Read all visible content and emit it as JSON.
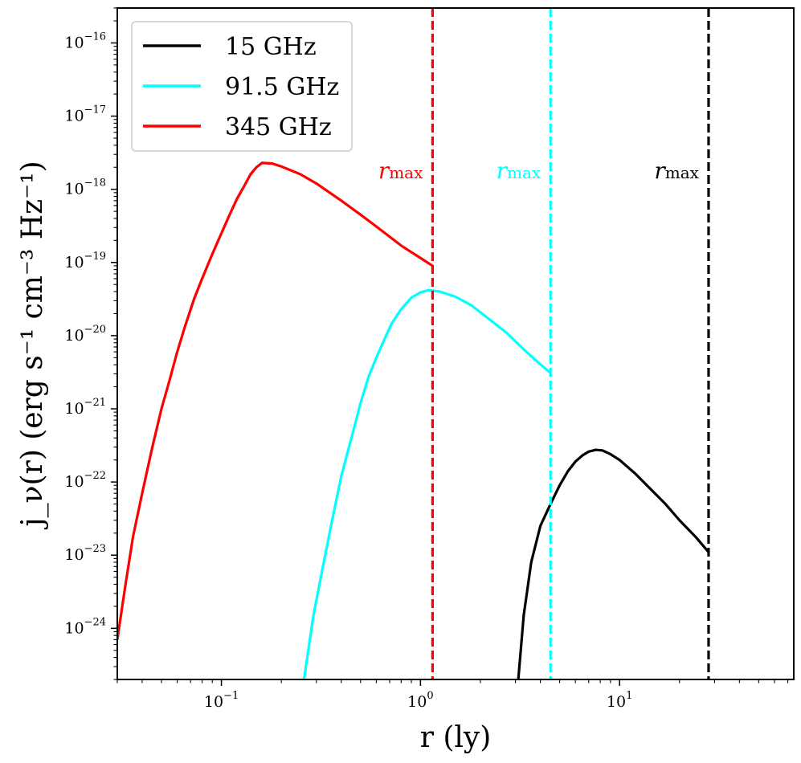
{
  "chart_data": {
    "type": "line",
    "title": "",
    "xlabel": "r (ly)",
    "ylabel": "j_ν(r) (erg s⁻¹ cm⁻³ Hz⁻¹)",
    "xscale": "log",
    "yscale": "log",
    "xlim": [
      0.03,
      75
    ],
    "ylim": [
      2e-25,
      3e-16
    ],
    "x_ticks": [
      {
        "base": "10",
        "exp": "−1",
        "value": 0.1
      },
      {
        "base": "10",
        "exp": "0",
        "value": 1
      },
      {
        "base": "10",
        "exp": "1",
        "value": 10
      }
    ],
    "y_ticks": [
      {
        "base": "10",
        "exp": "−24",
        "value": 1e-24
      },
      {
        "base": "10",
        "exp": "−23",
        "value": 1e-23
      },
      {
        "base": "10",
        "exp": "−22",
        "value": 1e-22
      },
      {
        "base": "10",
        "exp": "−21",
        "value": 1e-21
      },
      {
        "base": "10",
        "exp": "−20",
        "value": 1e-20
      },
      {
        "base": "10",
        "exp": "−19",
        "value": 1e-19
      },
      {
        "base": "10",
        "exp": "−18",
        "value": 1e-18
      },
      {
        "base": "10",
        "exp": "−17",
        "value": 1e-17
      },
      {
        "base": "10",
        "exp": "−16",
        "value": 1e-16
      }
    ],
    "legend_position": "top-left",
    "series": [
      {
        "name": "15 GHz",
        "color": "#000000",
        "rmax": 28,
        "points": [
          [
            3.1,
            2e-25
          ],
          [
            3.3,
            1.5e-24
          ],
          [
            3.6,
            8e-24
          ],
          [
            4.0,
            2.5e-23
          ],
          [
            4.5,
            5e-23
          ],
          [
            5.0,
            9e-23
          ],
          [
            5.5,
            1.4e-22
          ],
          [
            6.0,
            1.9e-22
          ],
          [
            6.5,
            2.3e-22
          ],
          [
            7.0,
            2.6e-22
          ],
          [
            7.6,
            2.75e-22
          ],
          [
            8.2,
            2.7e-22
          ],
          [
            9.0,
            2.4e-22
          ],
          [
            10,
            2e-22
          ],
          [
            12,
            1.3e-22
          ],
          [
            14,
            8.5e-23
          ],
          [
            17,
            5e-23
          ],
          [
            20,
            3e-23
          ],
          [
            24,
            1.8e-23
          ],
          [
            28,
            1.1e-23
          ]
        ]
      },
      {
        "name": "91.5 GHz",
        "color": "#00ffff",
        "rmax": 4.5,
        "points": [
          [
            0.26,
            2e-25
          ],
          [
            0.29,
            1.5e-24
          ],
          [
            0.32,
            6e-24
          ],
          [
            0.36,
            3e-23
          ],
          [
            0.4,
            1.2e-22
          ],
          [
            0.45,
            4e-22
          ],
          [
            0.5,
            1.2e-21
          ],
          [
            0.55,
            2.8e-21
          ],
          [
            0.6,
            5e-21
          ],
          [
            0.66,
            9e-21
          ],
          [
            0.72,
            1.5e-20
          ],
          [
            0.8,
            2.3e-20
          ],
          [
            0.9,
            3.3e-20
          ],
          [
            1.0,
            3.9e-20
          ],
          [
            1.1,
            4.2e-20
          ],
          [
            1.25,
            4e-20
          ],
          [
            1.5,
            3.4e-20
          ],
          [
            1.8,
            2.6e-20
          ],
          [
            2.2,
            1.7e-20
          ],
          [
            2.7,
            1.1e-20
          ],
          [
            3.3,
            6.5e-21
          ],
          [
            3.9,
            4.3e-21
          ],
          [
            4.5,
            3.1e-21
          ]
        ]
      },
      {
        "name": "345 GHz",
        "color": "#ff0000",
        "rmax": 1.15,
        "points": [
          [
            0.03,
            7e-25
          ],
          [
            0.033,
            4e-24
          ],
          [
            0.036,
            1.8e-23
          ],
          [
            0.04,
            7e-23
          ],
          [
            0.045,
            3e-22
          ],
          [
            0.05,
            1e-21
          ],
          [
            0.055,
            2.5e-21
          ],
          [
            0.06,
            6e-21
          ],
          [
            0.066,
            1.4e-20
          ],
          [
            0.073,
            3.2e-20
          ],
          [
            0.08,
            6e-20
          ],
          [
            0.09,
            1.3e-19
          ],
          [
            0.1,
            2.5e-19
          ],
          [
            0.11,
            4.5e-19
          ],
          [
            0.12,
            7.5e-19
          ],
          [
            0.13,
            1.1e-18
          ],
          [
            0.14,
            1.6e-18
          ],
          [
            0.15,
            2e-18
          ],
          [
            0.16,
            2.3e-18
          ],
          [
            0.18,
            2.25e-18
          ],
          [
            0.2,
            2.05e-18
          ],
          [
            0.25,
            1.6e-18
          ],
          [
            0.3,
            1.2e-18
          ],
          [
            0.4,
            7e-19
          ],
          [
            0.5,
            4.5e-19
          ],
          [
            0.6,
            3.1e-19
          ],
          [
            0.8,
            1.7e-19
          ],
          [
            1.0,
            1.15e-19
          ],
          [
            1.15,
            9e-20
          ]
        ]
      }
    ],
    "annotations": [
      {
        "main": "r",
        "sub": "max",
        "color": "#ff0000",
        "anchor_x": 1.15
      },
      {
        "main": "r",
        "sub": "max",
        "color": "#00ffff",
        "anchor_x": 4.5
      },
      {
        "main": "r",
        "sub": "max",
        "color": "#000000",
        "anchor_x": 28
      }
    ]
  }
}
